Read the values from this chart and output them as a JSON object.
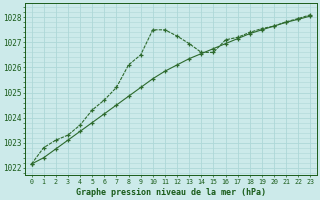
{
  "line1_x": [
    0,
    1,
    2,
    3,
    4,
    5,
    6,
    7,
    8,
    9,
    10,
    11,
    12,
    13,
    14,
    15,
    16,
    17,
    18,
    19,
    20,
    21,
    22,
    23
  ],
  "line1_y": [
    1022.15,
    1022.4,
    1022.75,
    1023.1,
    1023.45,
    1023.8,
    1024.15,
    1024.5,
    1024.85,
    1025.2,
    1025.55,
    1025.85,
    1026.1,
    1026.35,
    1026.55,
    1026.75,
    1026.95,
    1027.15,
    1027.35,
    1027.5,
    1027.65,
    1027.8,
    1027.92,
    1028.05
  ],
  "line2_x": [
    0,
    1,
    2,
    3,
    4,
    5,
    6,
    7,
    8,
    9,
    10,
    11,
    12,
    13,
    14,
    15,
    16,
    17,
    18,
    19,
    20,
    21,
    22,
    23
  ],
  "line2_y": [
    1022.15,
    1022.8,
    1023.1,
    1023.3,
    1023.7,
    1024.3,
    1024.7,
    1025.2,
    1026.1,
    1026.5,
    1027.5,
    1027.5,
    1027.25,
    1026.95,
    1026.6,
    1026.6,
    1027.1,
    1027.2,
    1027.4,
    1027.55,
    1027.65,
    1027.82,
    1027.95,
    1028.1
  ],
  "line_color": "#2d6a2d",
  "bg_color": "#cceaea",
  "grid_color": "#aed8d8",
  "text_color": "#1a5c1a",
  "ylabel_values": [
    1022,
    1023,
    1024,
    1025,
    1026,
    1027,
    1028
  ],
  "xlabel": "Graphe pression niveau de la mer (hPa)",
  "ylim": [
    1021.7,
    1028.55
  ],
  "xlim": [
    -0.5,
    23.5
  ],
  "figwidth": 3.2,
  "figheight": 2.0,
  "dpi": 100
}
